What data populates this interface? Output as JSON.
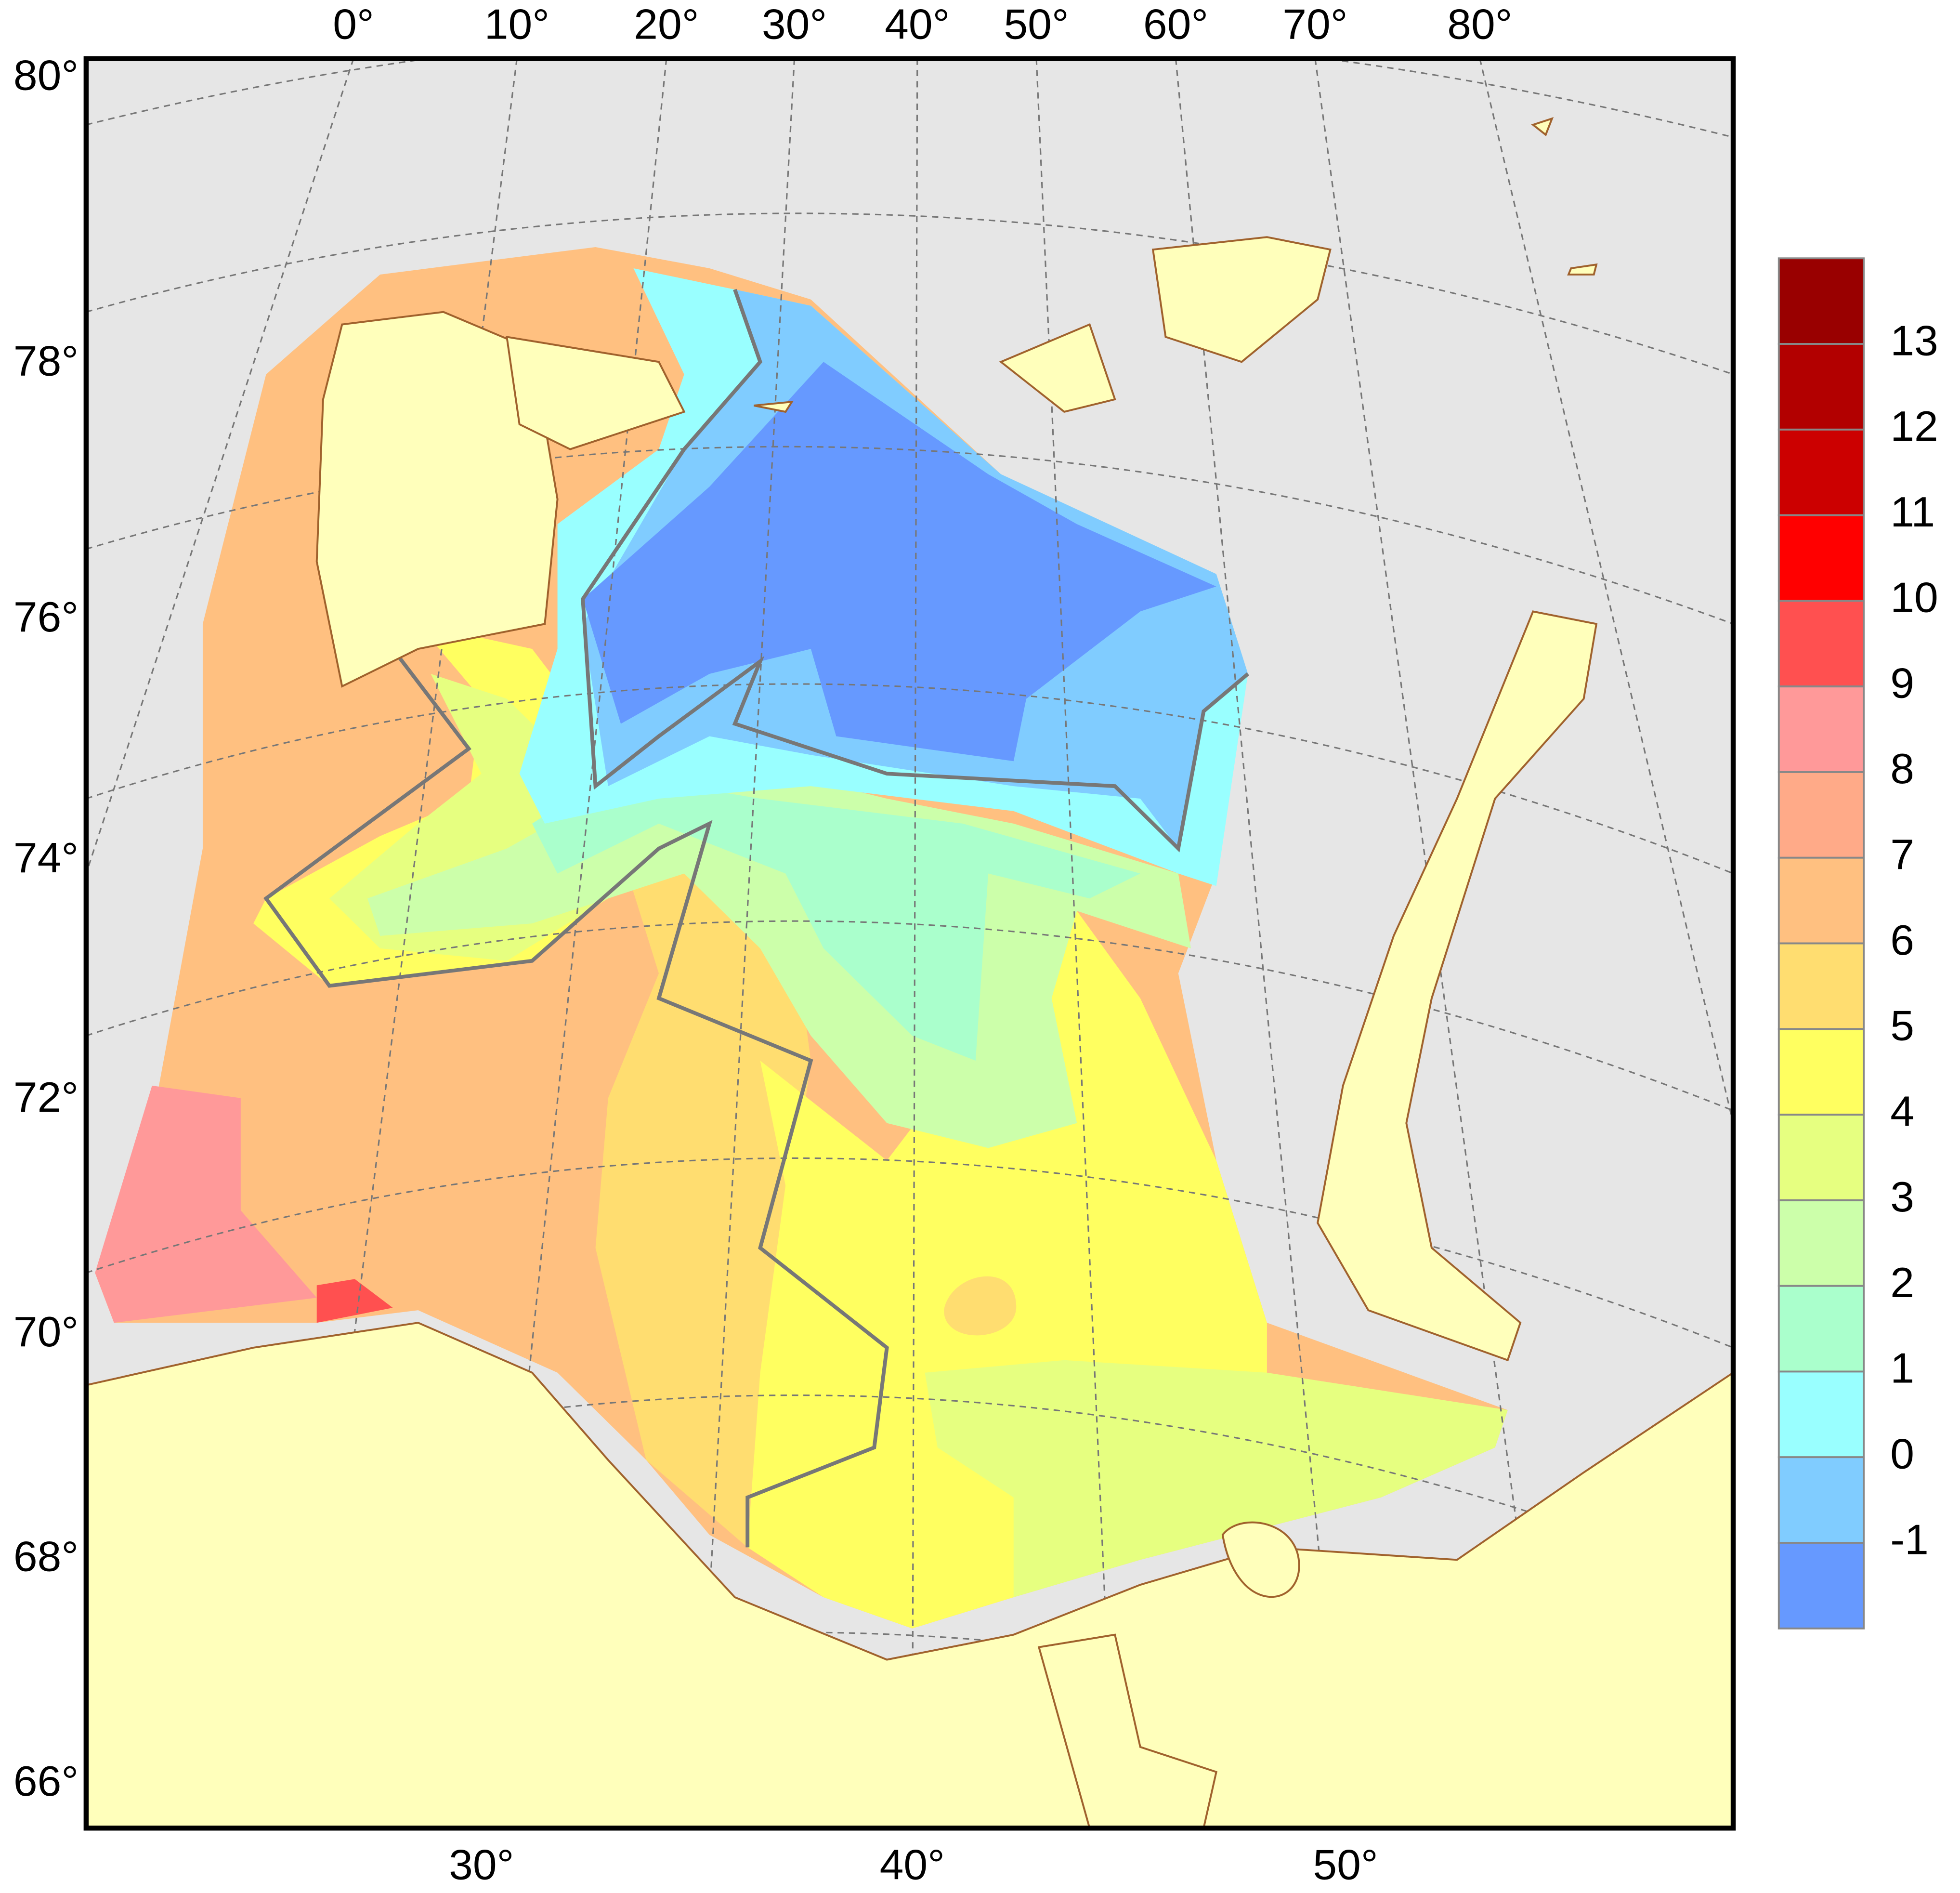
{
  "map": {
    "lon_labels_top": [
      "0°",
      "10°",
      "20°",
      "30°",
      "40°",
      "50°",
      "60°",
      "70°",
      "80°"
    ],
    "lat_labels_left": [
      "80°",
      "78°",
      "76°",
      "74°",
      "72°",
      "70°",
      "68°",
      "66°"
    ],
    "lon_labels_bottom": [
      "30°",
      "40°",
      "50°"
    ]
  },
  "colorbar": {
    "labels": [
      13,
      12,
      11,
      10,
      9,
      8,
      7,
      6,
      5,
      4,
      3,
      2,
      1,
      0,
      -1
    ],
    "colors": [
      "#990000",
      "#b20000",
      "#cc0000",
      "#ff0000",
      "#ff5050",
      "#ff9999",
      "#ffaa88",
      "#ffc080",
      "#ffdd70",
      "#ffff60",
      "#e6ff80",
      "#ccffaa",
      "#aaffcc",
      "#99ffff",
      "#80ccff",
      "#6699ff"
    ]
  }
}
